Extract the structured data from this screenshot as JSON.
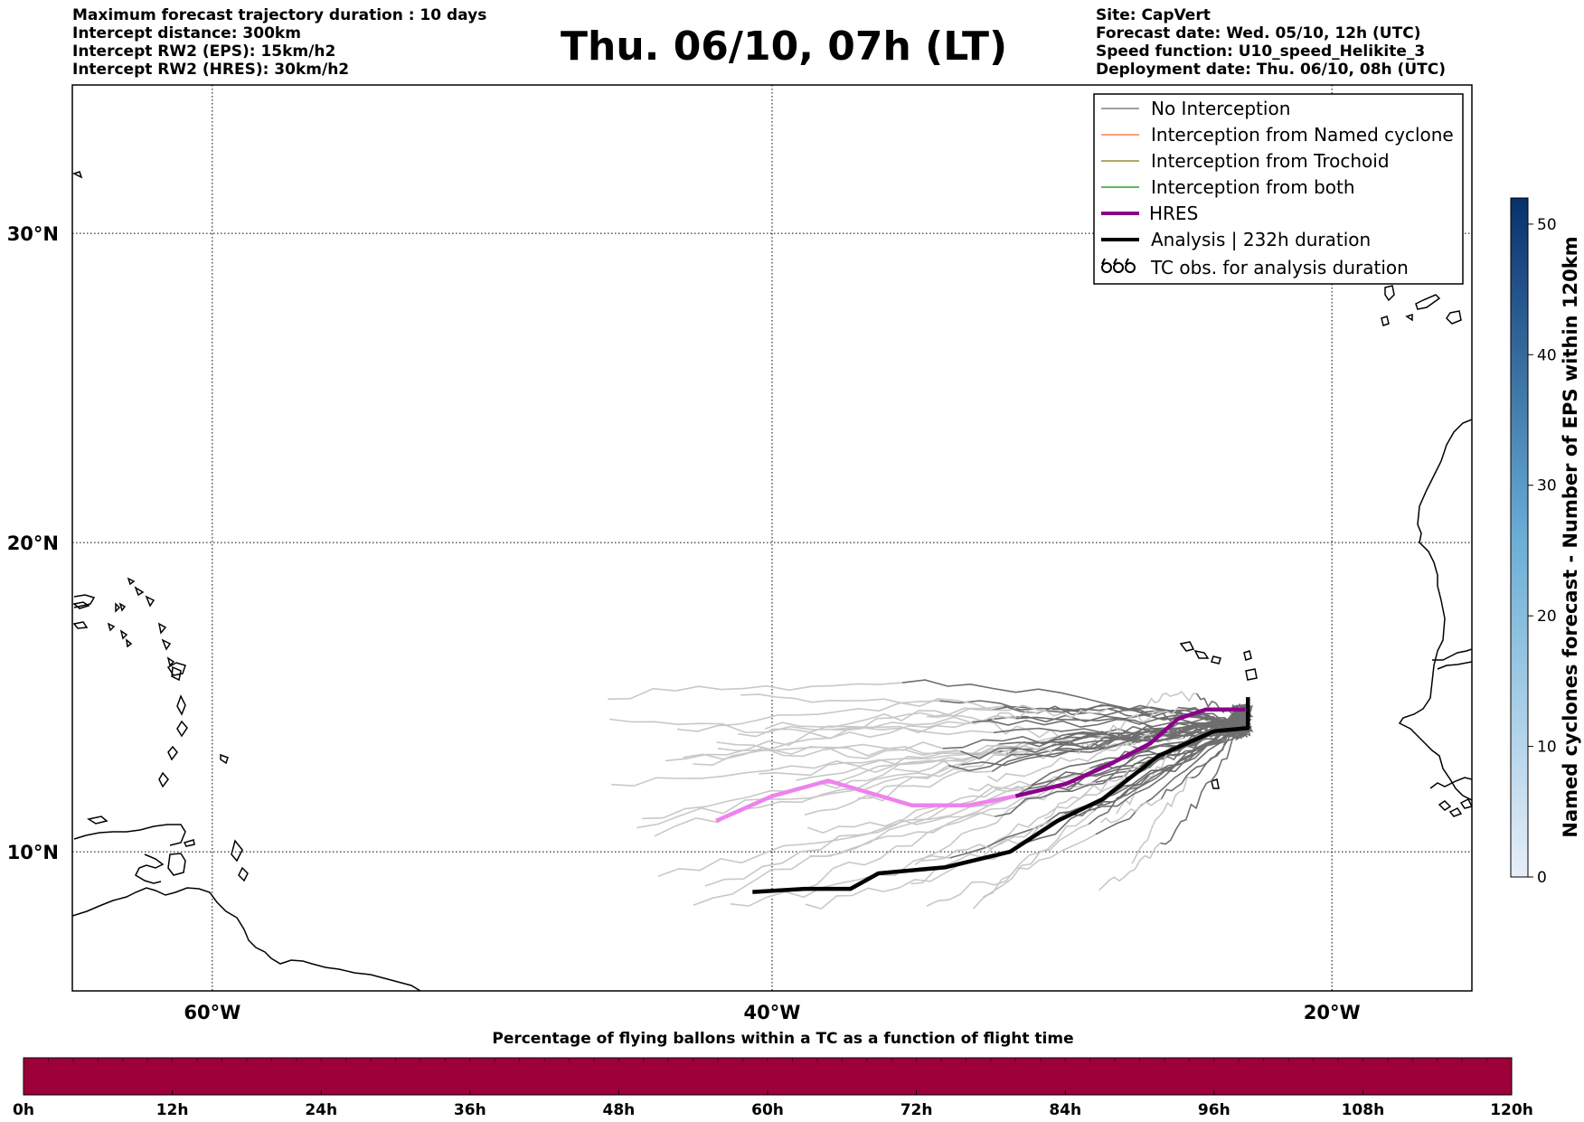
{
  "header": {
    "left_lines": [
      "Maximum forecast trajectory duration : 10 days",
      "Intercept distance: 300km",
      "Intercept RW2 (EPS):  15km/h2",
      "Intercept RW2 (HRES): 30km/h2"
    ],
    "right_lines": [
      "Site: CapVert",
      "Forecast date: Wed. 05/10, 12h (UTC)",
      "Speed function: U10_speed_Helikite_3",
      "Deployment date: Thu. 06/10, 08h (UTC)"
    ],
    "title": "Thu. 06/10, 07h (LT)"
  },
  "map": {
    "lon_range": [
      -65,
      -15
    ],
    "lat_range": [
      5.5,
      34.8
    ],
    "lon_ticks": [
      {
        "value": -60,
        "label": "60°W"
      },
      {
        "value": -40,
        "label": "40°W"
      },
      {
        "value": -20,
        "label": "20°W"
      }
    ],
    "lat_ticks": [
      {
        "value": 30,
        "label": "30°N"
      },
      {
        "value": 20,
        "label": "20°N"
      },
      {
        "value": 10,
        "label": "10°N"
      }
    ],
    "colors": {
      "no_interception": "#808080",
      "named_cyclone": "#ff7f50",
      "trochoid": "#9b8a3c",
      "both": "#2ca02c",
      "hres": "#8b008b",
      "hres_beyond": "#ee82ee",
      "analysis": "#000000",
      "ensemble_light": "#c8c8c8",
      "ensemble_dark": "#6e6e6e"
    },
    "hres_track": [
      [
        -23.1,
        14.6
      ],
      [
        -24.5,
        14.6
      ],
      [
        -25.5,
        14.3
      ],
      [
        -26.5,
        13.5
      ],
      [
        -28,
        12.8
      ],
      [
        -29.5,
        12.2
      ],
      [
        -31.3,
        11.8
      ]
    ],
    "hres_track_beyond": [
      [
        -31.3,
        11.8
      ],
      [
        -33,
        11.5
      ],
      [
        -35,
        11.5
      ],
      [
        -36.5,
        11.9
      ],
      [
        -38,
        12.3
      ],
      [
        -40,
        11.8
      ],
      [
        -42,
        11.0
      ]
    ],
    "analysis_track": [
      [
        -23.0,
        15.0
      ],
      [
        -23.0,
        14.0
      ],
      [
        -24.2,
        13.9
      ],
      [
        -26.2,
        13.1
      ],
      [
        -28.2,
        11.7
      ],
      [
        -29.8,
        11.0
      ],
      [
        -31.5,
        10.0
      ],
      [
        -33.8,
        9.5
      ],
      [
        -36.2,
        9.3
      ],
      [
        -37.2,
        8.8
      ],
      [
        -38.8,
        8.8
      ],
      [
        -40.7,
        8.7
      ]
    ]
  },
  "legend": {
    "items": [
      {
        "label": "No Interception",
        "style": "no_interception"
      },
      {
        "label": "Interception from Named cyclone",
        "style": "named_cyclone"
      },
      {
        "label": "Interception from Trochoid",
        "style": "trochoid"
      },
      {
        "label": "Interception from both",
        "style": "both"
      },
      {
        "label": "HRES",
        "style": "hres"
      },
      {
        "label": "Analysis | 232h duration",
        "style": "analysis"
      },
      {
        "label": "TC obs. for analysis duration",
        "style": "tc_symbol"
      }
    ]
  },
  "right_colorbar": {
    "label": "Named cyclones forecast - Number of EPS within 120km",
    "ticks": [
      "0",
      "10",
      "20",
      "30",
      "40",
      "50"
    ],
    "min": 0,
    "max": 52,
    "color_low": "#e6eef8",
    "color_high": "#08306b"
  },
  "bottom_colorbar": {
    "title": "Percentage of flying ballons within a TC as a function of flight time",
    "ticks": [
      "0h",
      "12h",
      "24h",
      "36h",
      "48h",
      "60h",
      "72h",
      "84h",
      "96h",
      "108h",
      "120h"
    ],
    "color": "#9e003a"
  }
}
